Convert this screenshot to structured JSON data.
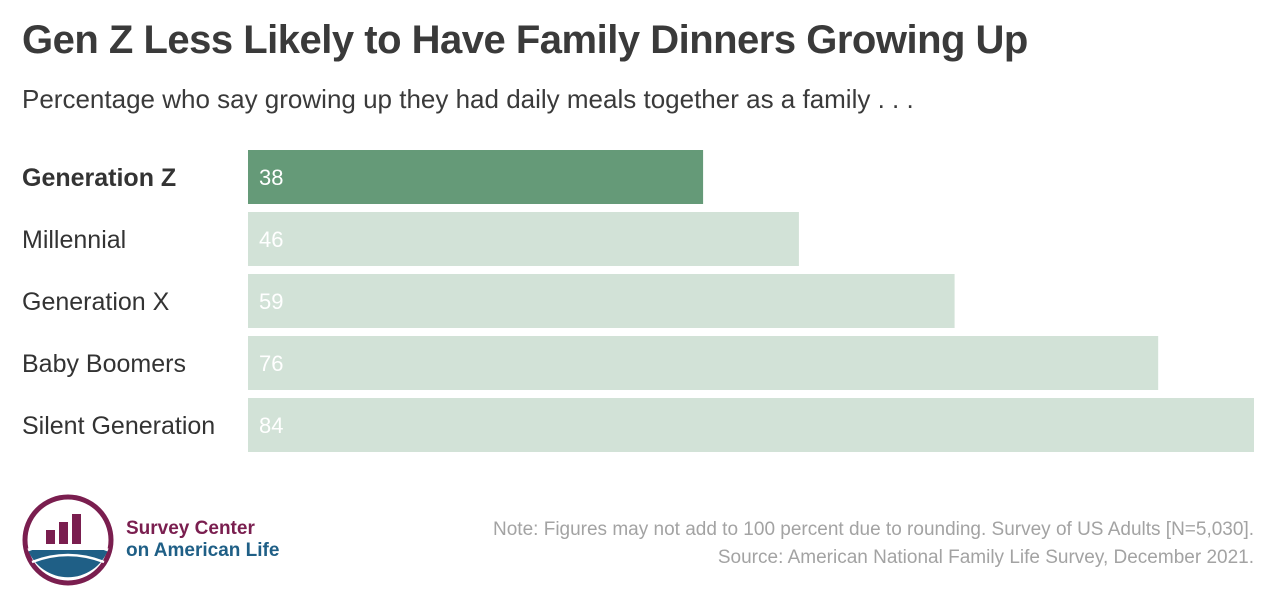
{
  "title": "Gen Z Less Likely to Have Family Dinners Growing Up",
  "subtitle": "Percentage who say growing up they had daily meals together as a family . . .",
  "colors": {
    "highlight": "#659a78",
    "muted": "#d2e2d7",
    "logo_maroon": "#7a1e4f",
    "logo_blue": "#1f5f86"
  },
  "chart_data": {
    "type": "bar",
    "orientation": "horizontal",
    "categories": [
      "Generation Z",
      "Millennial",
      "Generation X",
      "Baby Boomers",
      "Silent Generation"
    ],
    "values": [
      38,
      46,
      59,
      76,
      84
    ],
    "highlighted": "Generation Z",
    "xlim": [
      0,
      84
    ],
    "grid": false,
    "legend": "none"
  },
  "logo": {
    "line1": "Survey Center",
    "line2": "on American Life"
  },
  "footer": {
    "note": "Note: Figures may not add to 100 percent due to rounding. Survey of US Adults [N=5,030].",
    "source": "Source: American National Family Life Survey, December 2021."
  }
}
